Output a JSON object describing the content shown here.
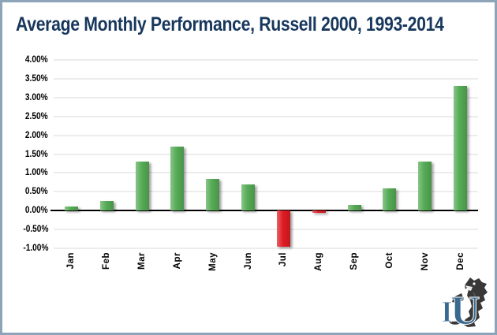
{
  "window": {
    "border_color": "#8ca3b8",
    "background_color": "#ffffff"
  },
  "title": "Average Monthly Performance, Russell 2000, 1993-2014",
  "title_color": "#17375d",
  "chart_data": {
    "type": "bar",
    "title": "Average Monthly Performance, Russell 2000, 1993-2014",
    "xlabel": "",
    "ylabel": "",
    "unit": "%",
    "categories": [
      "Jan",
      "Feb",
      "Mar",
      "Apr",
      "May",
      "Jun",
      "Jul",
      "Aug",
      "Sep",
      "Oct",
      "Nov",
      "Dec"
    ],
    "values": [
      0.1,
      0.25,
      1.3,
      1.7,
      0.85,
      0.7,
      -0.95,
      -0.05,
      0.15,
      0.6,
      1.3,
      3.3
    ],
    "ylim": [
      -1.0,
      4.0
    ],
    "y_tick_step": 0.5,
    "y_tick_labels": [
      "4.00%",
      "3.50%",
      "3.00%",
      "2.50%",
      "2.00%",
      "1.50%",
      "1.00%",
      "0.50%",
      "0.00%",
      "-0.50%",
      "-1.00%"
    ],
    "grid": true,
    "legend_position": "none",
    "positive_color": "#55ab55",
    "negative_color": "#e01b23",
    "gridline_color": "#d9d9d9",
    "axis_color": "#000000"
  },
  "logo": {
    "letters": "IU",
    "letter_color": "#3b6a91",
    "creature_color": "#383838"
  }
}
